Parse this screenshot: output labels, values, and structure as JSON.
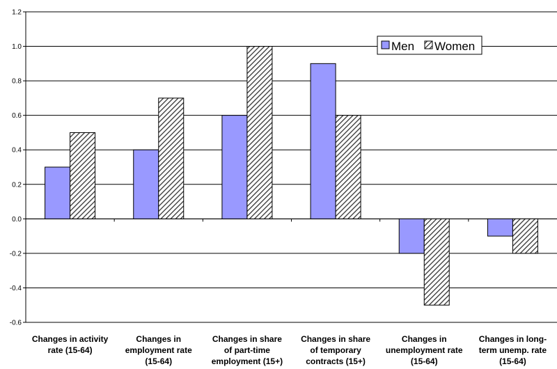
{
  "chart_data": {
    "type": "bar",
    "categories": [
      [
        "Changes in activity",
        "rate (15-64)"
      ],
      [
        "Changes in",
        "employment rate",
        "(15-64)"
      ],
      [
        "Changes in share",
        "of part-time",
        "employment (15+)"
      ],
      [
        "Changes in share",
        "of temporary",
        "contracts (15+)"
      ],
      [
        "Changes in",
        "unemployment rate",
        "(15-64)"
      ],
      [
        "Changes in long-",
        "term unemp. rate",
        "(15-64)"
      ]
    ],
    "series": [
      {
        "name": "Men",
        "values": [
          0.3,
          0.4,
          0.6,
          0.9,
          -0.2,
          -0.1
        ]
      },
      {
        "name": "Women",
        "values": [
          0.5,
          0.7,
          1.0,
          0.6,
          -0.5,
          -0.2
        ]
      }
    ],
    "ylim": [
      -0.6,
      1.2
    ],
    "yticks": [
      "-0.6",
      "-0.4",
      "-0.2",
      "0.0",
      "0.2",
      "0.4",
      "0.6",
      "0.8",
      "1.0",
      "1.2"
    ],
    "grid": true,
    "legend": "top-right",
    "colors": {
      "men": "#9999ff",
      "women_stripe": "#333333",
      "women_bg": "#ffffff"
    }
  }
}
